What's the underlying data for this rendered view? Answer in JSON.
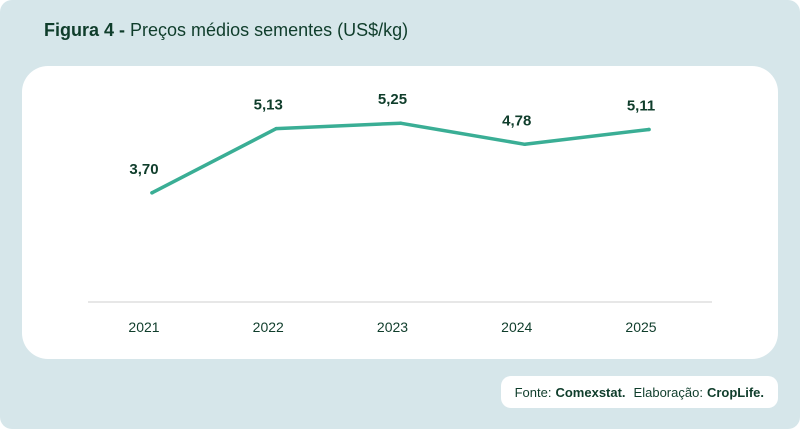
{
  "figure": {
    "label": "Figura 4 -",
    "title": "Preços médios sementes (US$/kg)"
  },
  "source": {
    "fonte_label": "Fonte:",
    "fonte_value": "Comexstat.",
    "elab_label": "Elaboração:",
    "elab_value": "CropLife."
  },
  "colors": {
    "background": "#d6e6ea",
    "line": "#3aae95",
    "text": "#0f3d2b",
    "axis": "#cfcfcf"
  },
  "chart_data": {
    "type": "line",
    "title": "Preços médios sementes (US$/kg)",
    "xlabel": "",
    "ylabel": "",
    "categories": [
      "2021",
      "2022",
      "2023",
      "2024",
      "2025"
    ],
    "series": [
      {
        "values": [
          3.7,
          5.13,
          5.25,
          4.78,
          5.11
        ],
        "labels": [
          "3,70",
          "5,13",
          "5,25",
          "4,78",
          "5,11"
        ]
      }
    ],
    "ylim": [
      1.2,
      5.9
    ],
    "grid": false,
    "legend": "none"
  }
}
